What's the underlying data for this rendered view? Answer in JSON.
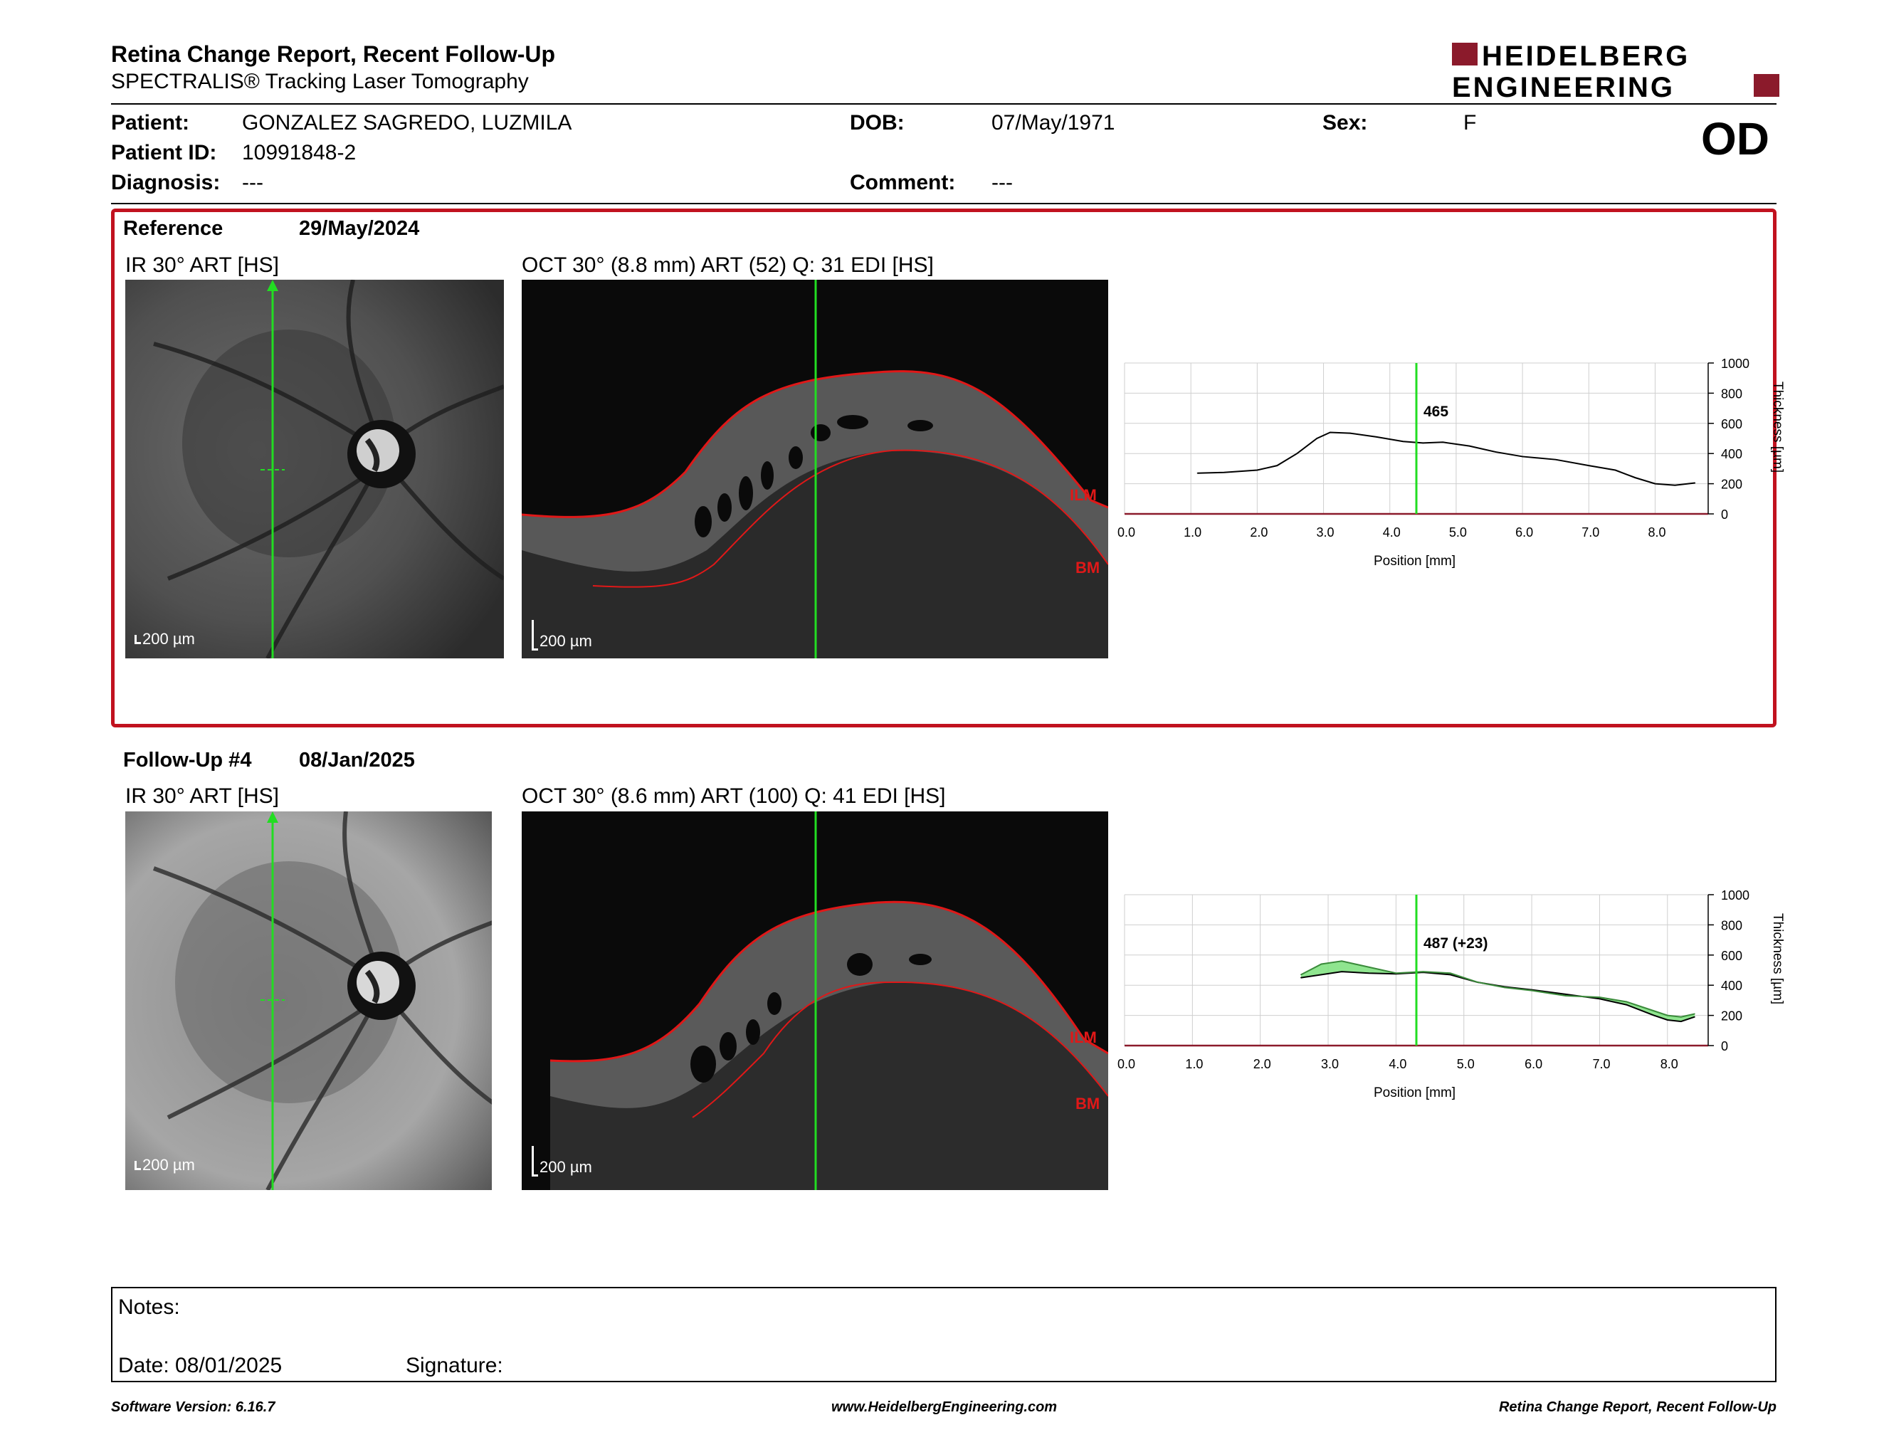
{
  "header": {
    "title": "Retina Change Report, Recent Follow-Up",
    "subtitle": "SPECTRALIS® Tracking Laser Tomography",
    "logo_line1": "HEIDELBERG",
    "logo_line2": "ENGINEERING",
    "eye": "OD"
  },
  "patient": {
    "name_label": "Patient:",
    "name": "GONZALEZ SAGREDO, LUZMILA",
    "id_label": "Patient ID:",
    "id": "10991848-2",
    "diagnosis_label": "Diagnosis:",
    "diagnosis": "---",
    "dob_label": "DOB:",
    "dob": "07/May/1971",
    "comment_label": "Comment:",
    "comment": "---",
    "sex_label": "Sex:",
    "sex": "F"
  },
  "reference": {
    "label": "Reference",
    "date": "29/May/2024",
    "ir_label": "IR 30° ART [HS]",
    "oct_label": "OCT 30° (8.8 mm) ART (52) Q: 31 EDI [HS]",
    "scale_ir": "200 µm",
    "scale_oct": "200 µm",
    "ilm": "ILM",
    "bm": "BM"
  },
  "followup": {
    "label": "Follow-Up #4",
    "date": "08/Jan/2025",
    "ir_label": "IR 30° ART [HS]",
    "oct_label": "OCT 30° (8.6 mm) ART (100) Q: 41 EDI [HS]",
    "scale_ir": "200 µm",
    "scale_oct": "200 µm",
    "ilm": "ILM",
    "bm": "BM"
  },
  "chart_data": [
    {
      "type": "line",
      "xlabel": "Position [mm]",
      "ylabel": "Thickness [µm]",
      "xlim": [
        0,
        8.8
      ],
      "ylim": [
        0,
        1000
      ],
      "x_ticks": [
        "0.0",
        "1.0",
        "2.0",
        "3.0",
        "4.0",
        "5.0",
        "6.0",
        "7.0",
        "8.0"
      ],
      "y_ticks": [
        "0",
        "200",
        "400",
        "600",
        "800",
        "1000"
      ],
      "grid": true,
      "cursor_x": 4.4,
      "cursor_label": "465",
      "series": [
        {
          "x": [
            1.1,
            1.5,
            2.0,
            2.3,
            2.6,
            2.9,
            3.1,
            3.4,
            3.8,
            4.2,
            4.5,
            4.8,
            5.2,
            5.6,
            6.0,
            6.5,
            7.0,
            7.4,
            7.7,
            8.0,
            8.3,
            8.6
          ],
          "values": [
            270,
            275,
            290,
            320,
            400,
            500,
            540,
            535,
            510,
            480,
            470,
            475,
            450,
            410,
            380,
            360,
            320,
            290,
            240,
            200,
            190,
            205
          ]
        }
      ]
    },
    {
      "type": "line",
      "xlabel": "Position [mm]",
      "ylabel": "Thickness [µm]",
      "xlim": [
        0,
        8.6
      ],
      "ylim": [
        0,
        1000
      ],
      "x_ticks": [
        "0.0",
        "1.0",
        "2.0",
        "3.0",
        "4.0",
        "5.0",
        "6.0",
        "7.0",
        "8.0"
      ],
      "y_ticks": [
        "0",
        "200",
        "400",
        "600",
        "800",
        "1000"
      ],
      "grid": true,
      "cursor_x": 4.3,
      "cursor_label": "487 (+23)",
      "series": [
        {
          "x": [
            2.6,
            2.9,
            3.2,
            3.6,
            4.0,
            4.4,
            4.8,
            5.2,
            5.6,
            6.0,
            6.5,
            7.0,
            7.4,
            7.8,
            8.0,
            8.2,
            8.4
          ],
          "values": [
            450,
            470,
            490,
            480,
            475,
            485,
            470,
            420,
            390,
            370,
            340,
            310,
            270,
            200,
            170,
            160,
            190
          ]
        },
        {
          "x": [
            2.6,
            2.9,
            3.2,
            3.6,
            4.0,
            4.4,
            4.8,
            5.2,
            5.6,
            6.0,
            6.5,
            7.0,
            7.4,
            7.8,
            8.0,
            8.2,
            8.4
          ],
          "values": [
            470,
            540,
            560,
            520,
            480,
            490,
            480,
            420,
            385,
            365,
            330,
            320,
            290,
            230,
            200,
            190,
            210
          ]
        }
      ]
    }
  ],
  "notes": {
    "label": "Notes:",
    "date_label": "Date: 08/01/2025",
    "signature_label": "Signature:"
  },
  "footer": {
    "left": "Software Version: 6.16.7",
    "center": "www.HeidelbergEngineering.com",
    "right": "Retina Change Report, Recent Follow-Up"
  },
  "colors": {
    "brand": "#8b1a2b",
    "frame": "#c1121f",
    "cursor": "#22dd22",
    "diff_fill": "#7be07b"
  }
}
